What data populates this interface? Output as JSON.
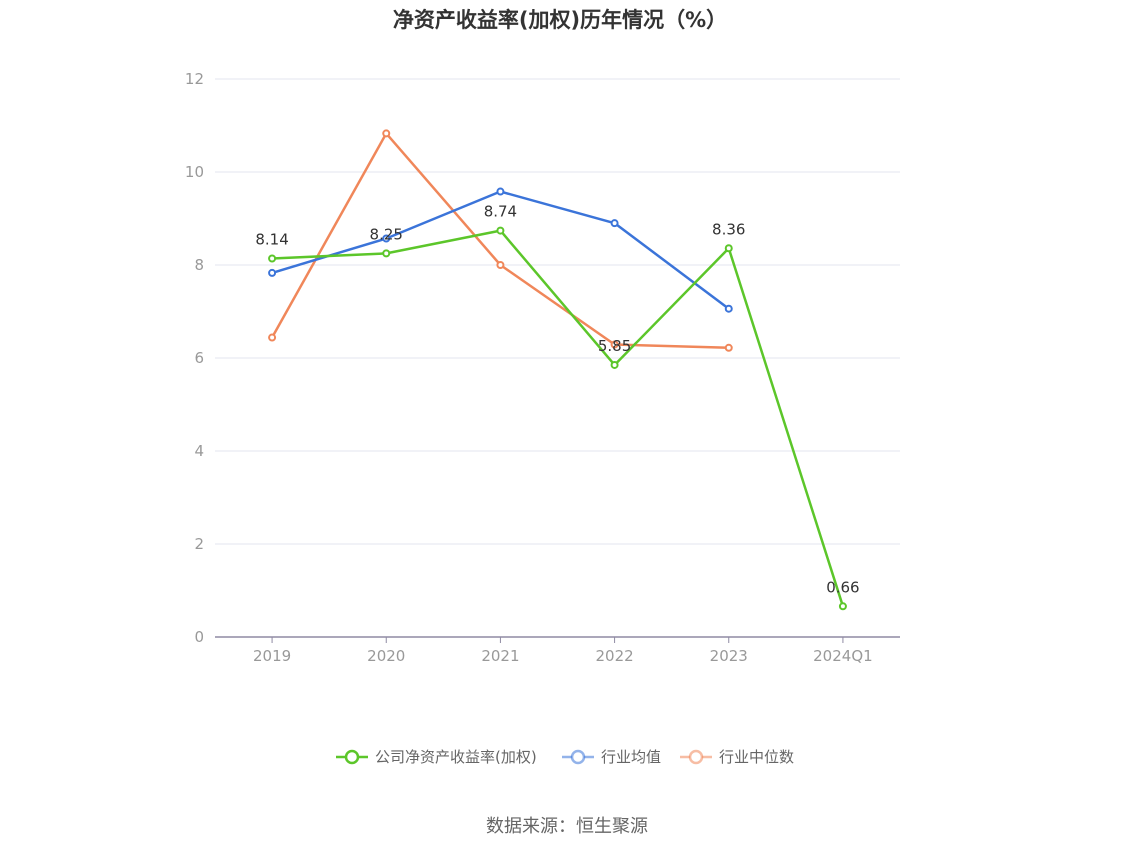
{
  "chart_data": {
    "type": "line",
    "title": "净资产收益率(加权)历年情况（%）",
    "categories": [
      "2019",
      "2020",
      "2021",
      "2022",
      "2023",
      "2024Q1"
    ],
    "ylim": [
      0,
      12
    ],
    "yticks": [
      0,
      2,
      4,
      6,
      8,
      10,
      12
    ],
    "grid": true,
    "legend_position": "bottom",
    "series": [
      {
        "name": "公司净资产收益率(加权)",
        "color": "#5cc62a",
        "values": [
          8.14,
          8.25,
          8.74,
          5.85,
          8.36,
          0.66
        ],
        "labels": [
          "8.14",
          "8.25",
          "8.74",
          "5.85",
          "8.36",
          "0.66"
        ]
      },
      {
        "name": "行业均值",
        "color": "#3b74d9",
        "values": [
          7.83,
          8.57,
          9.58,
          8.9,
          7.06,
          null
        ]
      },
      {
        "name": "行业中位数",
        "color": "#f0875a",
        "values": [
          6.44,
          10.83,
          8.0,
          6.29,
          6.22,
          null
        ]
      }
    ]
  },
  "source": "数据来源：恒生聚源"
}
